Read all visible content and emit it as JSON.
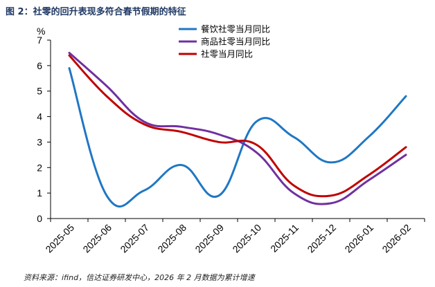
{
  "header": {
    "title": "图 2：社零的回升表现多符合春节假期的特征"
  },
  "footer": {
    "source": "资料来源：ifind，信达证券研发中心，2026 年 2 月数据为累计增速"
  },
  "colors": {
    "series1": "#1f77c4",
    "series2": "#7030a0",
    "series3": "#c00000",
    "axis": "#000000"
  },
  "chart_data": {
    "type": "line",
    "title": "社零的回升表现多符合春节假期的特征",
    "ylabel": "%",
    "xlabel": "",
    "ylim": [
      0,
      7
    ],
    "yticks": [
      "0",
      "1",
      "2",
      "3",
      "4",
      "5",
      "6",
      "7"
    ],
    "categories": [
      "2025-05",
      "2025-06",
      "2025-07",
      "2025-08",
      "2025-09",
      "2025-10",
      "2025-11",
      "2025-12",
      "2026-01",
      "2026-02"
    ],
    "legend_position": "top-right",
    "series": [
      {
        "name": "餐饮社零当月同比",
        "values": [
          5.9,
          0.9,
          1.1,
          2.1,
          0.9,
          3.8,
          3.2,
          2.2,
          3.2,
          4.8
        ]
      },
      {
        "name": "商品社零当月同比",
        "values": [
          6.5,
          5.2,
          3.8,
          3.6,
          3.3,
          2.6,
          1.0,
          0.6,
          1.5,
          2.5
        ]
      },
      {
        "name": "社零当月同比",
        "values": [
          6.4,
          4.8,
          3.7,
          3.4,
          3.0,
          2.9,
          1.3,
          0.9,
          1.7,
          2.8
        ]
      }
    ]
  }
}
